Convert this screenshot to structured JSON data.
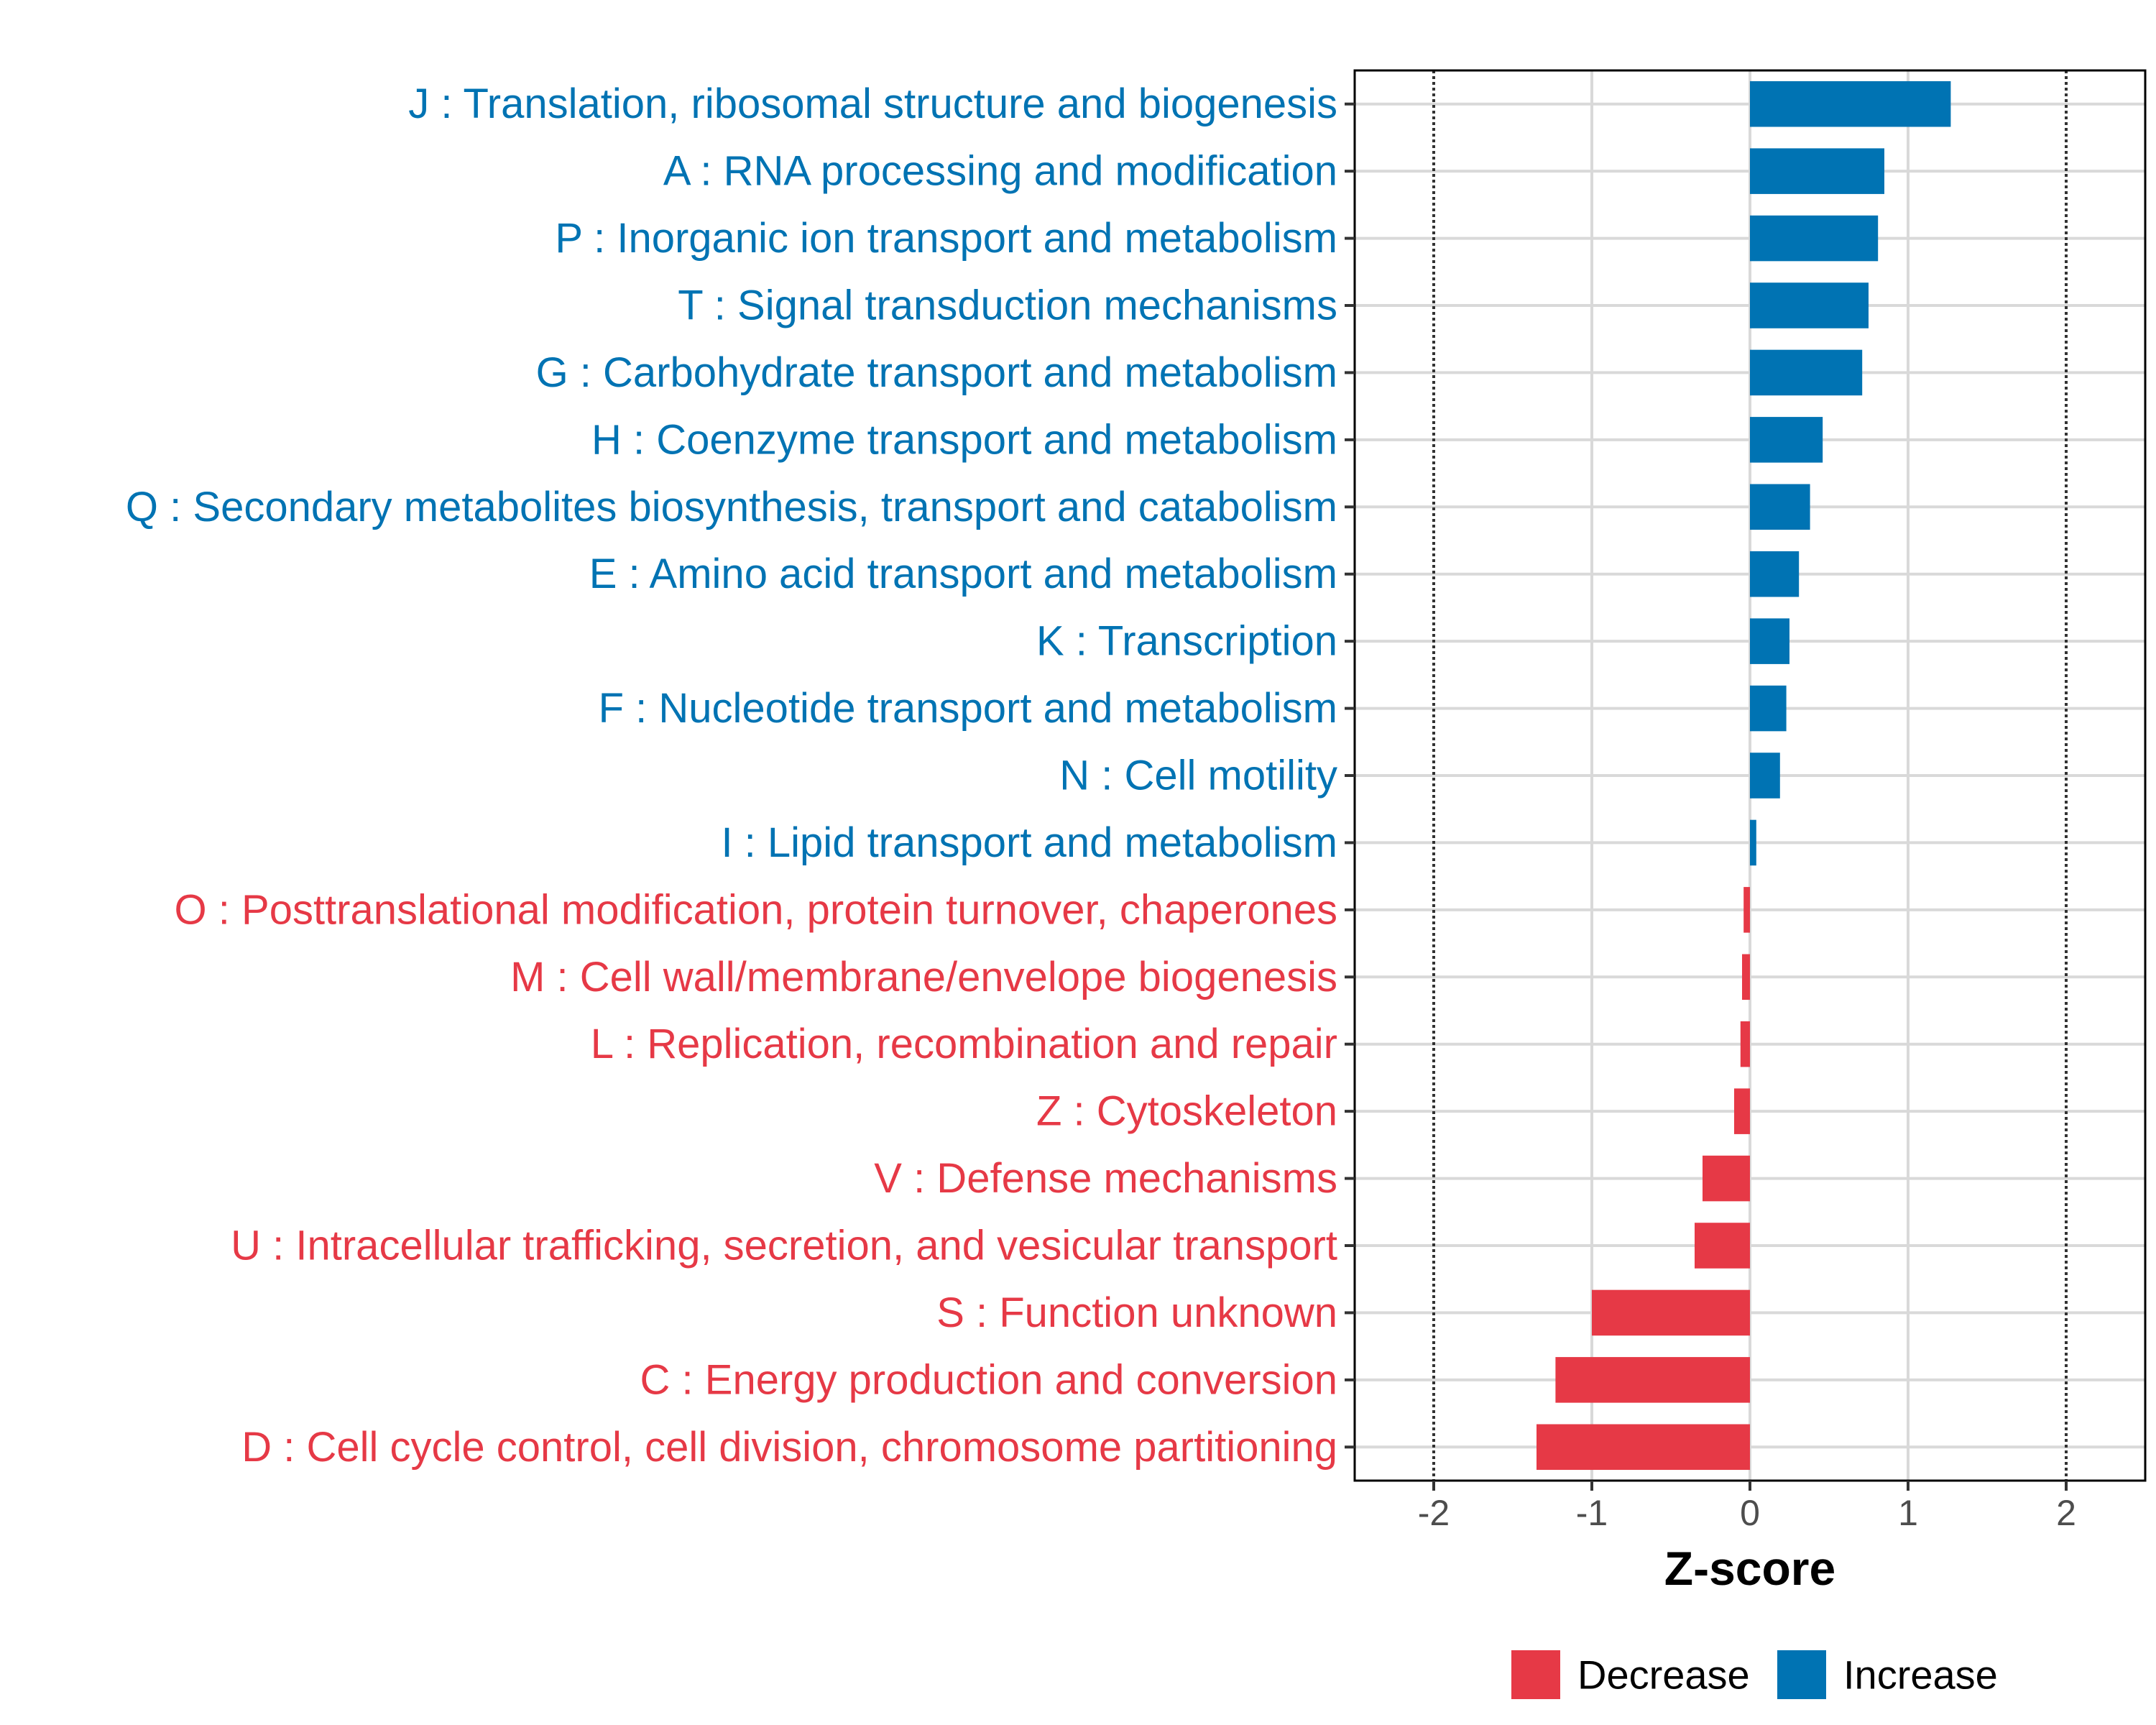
{
  "chart_data": {
    "type": "bar",
    "orientation": "horizontal",
    "xlabel": "Z-score",
    "xlim": [
      -2.5,
      2.5
    ],
    "x_ticks": [
      -2,
      -1,
      0,
      1,
      2
    ],
    "x_tick_labels": [
      "-2",
      "-1",
      "0",
      "1",
      "2"
    ],
    "reference_lines": [
      -2,
      2
    ],
    "colors": {
      "Increase": "#0073b3",
      "Decrease": "#e63946"
    },
    "legend": {
      "position": "bottom",
      "entries": [
        {
          "label": "Decrease",
          "color": "#e63946"
        },
        {
          "label": "Increase",
          "color": "#0073b3"
        }
      ]
    },
    "categories": [
      "J : Translation, ribosomal structure and biogenesis",
      "A : RNA processing and modification",
      "P : Inorganic ion transport and metabolism",
      "T : Signal transduction mechanisms",
      "G : Carbohydrate transport and metabolism",
      "H : Coenzyme transport and metabolism",
      "Q : Secondary metabolites biosynthesis, transport and catabolism",
      "E : Amino acid transport and metabolism",
      "K : Transcription",
      "F : Nucleotide transport and metabolism",
      "N : Cell motility",
      "I : Lipid transport and metabolism",
      "O : Posttranslational modification, protein turnover, chaperones",
      "M : Cell wall/membrane/envelope biogenesis",
      "L : Replication, recombination and repair",
      "Z : Cytoskeleton",
      "V : Defense mechanisms",
      "U : Intracellular trafficking, secretion, and vesicular transport",
      "S : Function unknown",
      "C : Energy production and conversion",
      "D : Cell cycle control, cell division, chromosome partitioning"
    ],
    "values": [
      1.27,
      0.85,
      0.81,
      0.75,
      0.71,
      0.46,
      0.38,
      0.31,
      0.25,
      0.23,
      0.19,
      0.04,
      -0.04,
      -0.05,
      -0.06,
      -0.1,
      -0.3,
      -0.35,
      -1.0,
      -1.23,
      -1.35
    ],
    "groups": [
      "Increase",
      "Increase",
      "Increase",
      "Increase",
      "Increase",
      "Increase",
      "Increase",
      "Increase",
      "Increase",
      "Increase",
      "Increase",
      "Increase",
      "Decrease",
      "Decrease",
      "Decrease",
      "Decrease",
      "Decrease",
      "Decrease",
      "Decrease",
      "Decrease",
      "Decrease"
    ]
  }
}
